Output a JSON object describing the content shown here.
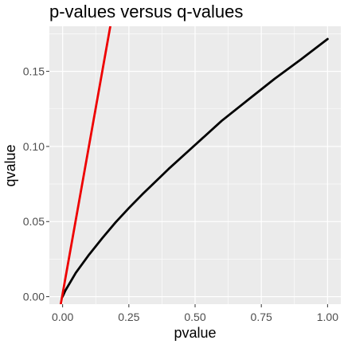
{
  "chart_data": {
    "type": "line",
    "title": "p-values versus q-values",
    "xlabel": "pvalue",
    "ylabel": "qvalue",
    "xlim": [
      -0.05,
      1.05
    ],
    "ylim": [
      -0.005,
      0.18
    ],
    "x_ticks": [
      0,
      0.25,
      0.5,
      0.75,
      1
    ],
    "x_tick_labels": [
      "0.00",
      "0.25",
      "0.50",
      "0.75",
      "1.00"
    ],
    "y_ticks": [
      0,
      0.05,
      0.1,
      0.15
    ],
    "y_tick_labels": [
      "0.00",
      "0.05",
      "0.10",
      "0.15"
    ],
    "grid": true,
    "colors": {
      "panel": "#ebebeb",
      "grid": "#ffffff",
      "tick": "#333333"
    },
    "series": [
      {
        "color": "#000000",
        "x": [
          0,
          0.01,
          0.05,
          0.1,
          0.15,
          0.2,
          0.25,
          0.3,
          0.4,
          0.5,
          0.6,
          0.7,
          0.8,
          0.9,
          1.0
        ],
        "y": [
          0,
          0.004,
          0.016,
          0.028,
          0.039,
          0.0495,
          0.059,
          0.068,
          0.085,
          0.101,
          0.117,
          0.131,
          0.145,
          0.158,
          0.1715
        ]
      },
      {
        "color": "#ee0000",
        "x": [
          -0.01,
          0.185
        ],
        "y": [
          -0.008,
          0.185
        ]
      }
    ]
  }
}
